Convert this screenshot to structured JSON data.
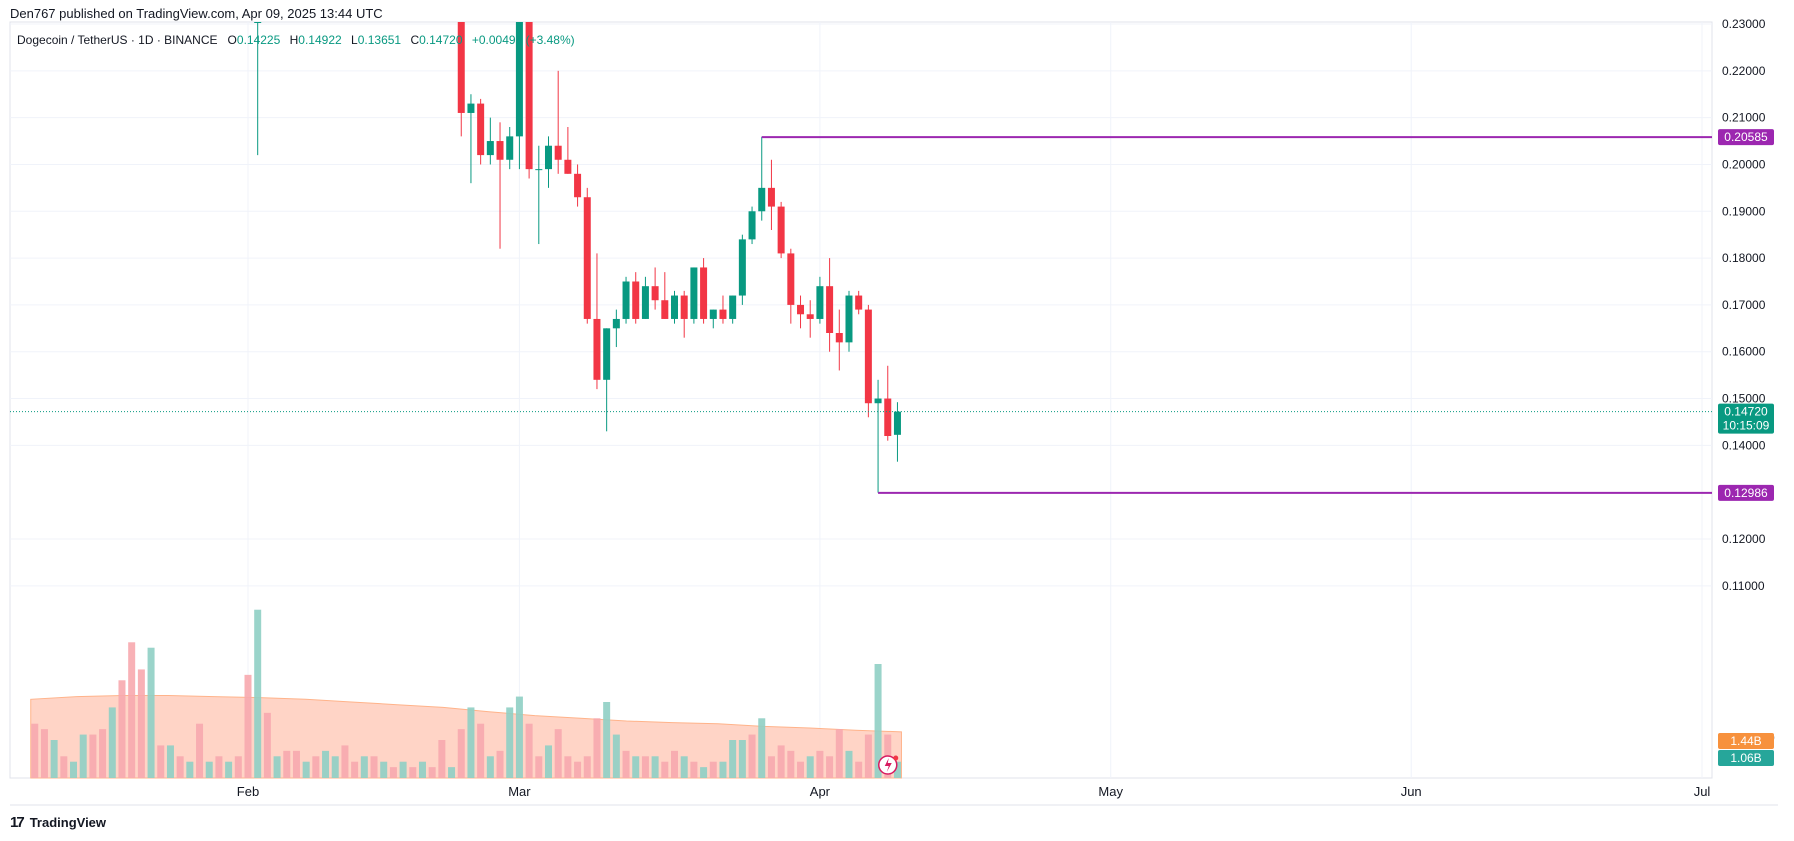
{
  "header": {
    "published_line": "Den767 published on TradingView.com, Apr 09, 2025 13:44 UTC"
  },
  "legend": {
    "symbol_line": "Dogecoin / TetherUS · 1D · BINANCE",
    "o_label": "O",
    "o_value": "0.14225",
    "h_label": "H",
    "h_value": "0.14922",
    "l_label": "L",
    "l_value": "0.13651",
    "c_label": "C",
    "c_value": "0.14720",
    "change": "+0.00495 (+3.48%)"
  },
  "footer": {
    "brand": "TradingView",
    "logo_icon": "tradingview-logo-icon"
  },
  "colors": {
    "up": "#089981",
    "down": "#f23645",
    "level": "#9c27b0",
    "volume_up": "#8fcfc4",
    "volume_down": "#f7a8ae",
    "volume_ma": "#ffccbc",
    "vol_badge_orange": "#f7913d",
    "vol_badge_teal": "#26a69a"
  },
  "chart_data": {
    "type": "candlestick",
    "y_axis": {
      "ticks": [
        "0.23000",
        "0.22000",
        "0.21000",
        "0.20000",
        "0.19000",
        "0.18000",
        "0.17000",
        "0.16000",
        "0.15000",
        "0.14000",
        "0.12000",
        "0.11000"
      ],
      "tick_values": [
        0.23,
        0.22,
        0.21,
        0.2,
        0.19,
        0.18,
        0.17,
        0.16,
        0.15,
        0.14,
        0.12,
        0.11
      ],
      "range": [
        0.0935,
        0.2355
      ]
    },
    "x_axis": {
      "labels": [
        "Feb",
        "Mar",
        "Apr",
        "May",
        "Jun",
        "Jul"
      ],
      "label_dates": [
        "2025-02-01",
        "2025-03-01",
        "2025-04-01",
        "2025-05-01",
        "2025-06-01",
        "2025-07-01"
      ],
      "range": [
        "2025-01-10",
        "2025-07-19"
      ]
    },
    "price_labels": {
      "resistance": "0.20585",
      "last_price": "0.14720",
      "countdown": "10:15:09",
      "support": "0.12986",
      "volume_a": "1.44B",
      "volume_b": "1.06B",
      "clipped_tick": "0"
    },
    "horizontal_levels": [
      {
        "value": 0.20585,
        "start_date": "2025-03-26",
        "label": "0.20585"
      },
      {
        "value": 0.12986,
        "start_date": "2025-04-07",
        "label": "0.12986"
      }
    ],
    "last_price": 0.1472,
    "candles": [
      {
        "date": "2025-02-02",
        "o": 0.236,
        "h": 0.236,
        "l": 0.202,
        "c": 0.236
      },
      {
        "date": "2025-02-23",
        "o": 0.236,
        "h": 0.236,
        "l": 0.206,
        "c": 0.211
      },
      {
        "date": "2025-02-24",
        "o": 0.211,
        "h": 0.215,
        "l": 0.196,
        "c": 0.213
      },
      {
        "date": "2025-02-25",
        "o": 0.213,
        "h": 0.214,
        "l": 0.2,
        "c": 0.202
      },
      {
        "date": "2025-02-26",
        "o": 0.202,
        "h": 0.21,
        "l": 0.2,
        "c": 0.205
      },
      {
        "date": "2025-02-27",
        "o": 0.205,
        "h": 0.209,
        "l": 0.182,
        "c": 0.201
      },
      {
        "date": "2025-02-28",
        "o": 0.201,
        "h": 0.208,
        "l": 0.199,
        "c": 0.206
      },
      {
        "date": "2025-03-01",
        "o": 0.206,
        "h": 0.236,
        "l": 0.199,
        "c": 0.236
      },
      {
        "date": "2025-03-02",
        "o": 0.236,
        "h": 0.236,
        "l": 0.197,
        "c": 0.199
      },
      {
        "date": "2025-03-03",
        "o": 0.199,
        "h": 0.204,
        "l": 0.183,
        "c": 0.199
      },
      {
        "date": "2025-03-04",
        "o": 0.199,
        "h": 0.206,
        "l": 0.195,
        "c": 0.204
      },
      {
        "date": "2025-03-05",
        "o": 0.204,
        "h": 0.22,
        "l": 0.198,
        "c": 0.201
      },
      {
        "date": "2025-03-06",
        "o": 0.201,
        "h": 0.208,
        "l": 0.198,
        "c": 0.198
      },
      {
        "date": "2025-03-07",
        "o": 0.198,
        "h": 0.2,
        "l": 0.191,
        "c": 0.193
      },
      {
        "date": "2025-03-08",
        "o": 0.193,
        "h": 0.195,
        "l": 0.166,
        "c": 0.167
      },
      {
        "date": "2025-03-09",
        "o": 0.167,
        "h": 0.181,
        "l": 0.152,
        "c": 0.154
      },
      {
        "date": "2025-03-10",
        "o": 0.154,
        "h": 0.165,
        "l": 0.143,
        "c": 0.165
      },
      {
        "date": "2025-03-11",
        "o": 0.165,
        "h": 0.169,
        "l": 0.161,
        "c": 0.167
      },
      {
        "date": "2025-03-12",
        "o": 0.167,
        "h": 0.176,
        "l": 0.166,
        "c": 0.175
      },
      {
        "date": "2025-03-13",
        "o": 0.175,
        "h": 0.177,
        "l": 0.166,
        "c": 0.167
      },
      {
        "date": "2025-03-14",
        "o": 0.167,
        "h": 0.176,
        "l": 0.167,
        "c": 0.174
      },
      {
        "date": "2025-03-15",
        "o": 0.174,
        "h": 0.178,
        "l": 0.169,
        "c": 0.171
      },
      {
        "date": "2025-03-16",
        "o": 0.171,
        "h": 0.177,
        "l": 0.167,
        "c": 0.167
      },
      {
        "date": "2025-03-17",
        "o": 0.167,
        "h": 0.173,
        "l": 0.166,
        "c": 0.172
      },
      {
        "date": "2025-03-18",
        "o": 0.172,
        "h": 0.173,
        "l": 0.163,
        "c": 0.167
      },
      {
        "date": "2025-03-19",
        "o": 0.167,
        "h": 0.178,
        "l": 0.166,
        "c": 0.178
      },
      {
        "date": "2025-03-20",
        "o": 0.178,
        "h": 0.18,
        "l": 0.166,
        "c": 0.167
      },
      {
        "date": "2025-03-21",
        "o": 0.167,
        "h": 0.169,
        "l": 0.165,
        "c": 0.169
      },
      {
        "date": "2025-03-22",
        "o": 0.169,
        "h": 0.172,
        "l": 0.166,
        "c": 0.167
      },
      {
        "date": "2025-03-23",
        "o": 0.167,
        "h": 0.172,
        "l": 0.166,
        "c": 0.172
      },
      {
        "date": "2025-03-24",
        "o": 0.172,
        "h": 0.185,
        "l": 0.17,
        "c": 0.184
      },
      {
        "date": "2025-03-25",
        "o": 0.184,
        "h": 0.191,
        "l": 0.183,
        "c": 0.19
      },
      {
        "date": "2025-03-26",
        "o": 0.19,
        "h": 0.2059,
        "l": 0.188,
        "c": 0.195
      },
      {
        "date": "2025-03-27",
        "o": 0.195,
        "h": 0.201,
        "l": 0.186,
        "c": 0.191
      },
      {
        "date": "2025-03-28",
        "o": 0.191,
        "h": 0.192,
        "l": 0.18,
        "c": 0.181
      },
      {
        "date": "2025-03-29",
        "o": 0.181,
        "h": 0.182,
        "l": 0.166,
        "c": 0.17
      },
      {
        "date": "2025-03-30",
        "o": 0.17,
        "h": 0.172,
        "l": 0.165,
        "c": 0.168
      },
      {
        "date": "2025-03-31",
        "o": 0.168,
        "h": 0.171,
        "l": 0.163,
        "c": 0.167
      },
      {
        "date": "2025-04-01",
        "o": 0.167,
        "h": 0.176,
        "l": 0.166,
        "c": 0.174
      },
      {
        "date": "2025-04-02",
        "o": 0.174,
        "h": 0.18,
        "l": 0.16,
        "c": 0.164
      },
      {
        "date": "2025-04-03",
        "o": 0.164,
        "h": 0.169,
        "l": 0.156,
        "c": 0.162
      },
      {
        "date": "2025-04-04",
        "o": 0.162,
        "h": 0.173,
        "l": 0.16,
        "c": 0.172
      },
      {
        "date": "2025-04-05",
        "o": 0.172,
        "h": 0.173,
        "l": 0.168,
        "c": 0.169
      },
      {
        "date": "2025-04-06",
        "o": 0.169,
        "h": 0.17,
        "l": 0.146,
        "c": 0.149
      },
      {
        "date": "2025-04-07",
        "o": 0.149,
        "h": 0.154,
        "l": 0.1299,
        "c": 0.15
      },
      {
        "date": "2025-04-08",
        "o": 0.15,
        "h": 0.157,
        "l": 0.141,
        "c": 0.142
      },
      {
        "date": "2025-04-09",
        "o": 0.14225,
        "h": 0.14922,
        "l": 0.13651,
        "c": 0.1472
      }
    ],
    "volume": {
      "scale_max": 3.5,
      "bars": [
        {
          "date": "2025-01-10",
          "v": 1.0,
          "up": false
        },
        {
          "date": "2025-01-11",
          "v": 0.9,
          "up": false
        },
        {
          "date": "2025-01-12",
          "v": 0.7,
          "up": true
        },
        {
          "date": "2025-01-13",
          "v": 0.4,
          "up": false
        },
        {
          "date": "2025-01-14",
          "v": 0.3,
          "up": true
        },
        {
          "date": "2025-01-15",
          "v": 0.8,
          "up": true
        },
        {
          "date": "2025-01-16",
          "v": 0.8,
          "up": false
        },
        {
          "date": "2025-01-17",
          "v": 0.9,
          "up": false
        },
        {
          "date": "2025-01-18",
          "v": 1.3,
          "up": true
        },
        {
          "date": "2025-01-19",
          "v": 1.8,
          "up": false
        },
        {
          "date": "2025-01-20",
          "v": 2.5,
          "up": false
        },
        {
          "date": "2025-01-21",
          "v": 2.0,
          "up": false
        },
        {
          "date": "2025-01-22",
          "v": 2.4,
          "up": true
        },
        {
          "date": "2025-01-23",
          "v": 0.6,
          "up": false
        },
        {
          "date": "2025-01-24",
          "v": 0.6,
          "up": true
        },
        {
          "date": "2025-01-25",
          "v": 0.4,
          "up": false
        },
        {
          "date": "2025-01-26",
          "v": 0.3,
          "up": true
        },
        {
          "date": "2025-01-27",
          "v": 1.0,
          "up": false
        },
        {
          "date": "2025-01-28",
          "v": 0.3,
          "up": true
        },
        {
          "date": "2025-01-29",
          "v": 0.4,
          "up": false
        },
        {
          "date": "2025-01-30",
          "v": 0.3,
          "up": true
        },
        {
          "date": "2025-01-31",
          "v": 0.4,
          "up": false
        },
        {
          "date": "2025-02-01",
          "v": 1.9,
          "up": false
        },
        {
          "date": "2025-02-02",
          "v": 3.1,
          "up": true
        },
        {
          "date": "2025-02-03",
          "v": 1.2,
          "up": false
        },
        {
          "date": "2025-02-04",
          "v": 0.4,
          "up": true
        },
        {
          "date": "2025-02-05",
          "v": 0.5,
          "up": false
        },
        {
          "date": "2025-02-06",
          "v": 0.5,
          "up": false
        },
        {
          "date": "2025-02-07",
          "v": 0.3,
          "up": true
        },
        {
          "date": "2025-02-08",
          "v": 0.4,
          "up": false
        },
        {
          "date": "2025-02-09",
          "v": 0.5,
          "up": true
        },
        {
          "date": "2025-02-10",
          "v": 0.4,
          "up": true
        },
        {
          "date": "2025-02-11",
          "v": 0.6,
          "up": false
        },
        {
          "date": "2025-02-12",
          "v": 0.3,
          "up": false
        },
        {
          "date": "2025-02-13",
          "v": 0.4,
          "up": true
        },
        {
          "date": "2025-02-14",
          "v": 0.4,
          "up": false
        },
        {
          "date": "2025-02-15",
          "v": 0.3,
          "up": true
        },
        {
          "date": "2025-02-16",
          "v": 0.2,
          "up": false
        },
        {
          "date": "2025-02-17",
          "v": 0.3,
          "up": true
        },
        {
          "date": "2025-02-18",
          "v": 0.2,
          "up": false
        },
        {
          "date": "2025-02-19",
          "v": 0.3,
          "up": true
        },
        {
          "date": "2025-02-20",
          "v": 0.2,
          "up": false
        },
        {
          "date": "2025-02-21",
          "v": 0.7,
          "up": false
        },
        {
          "date": "2025-02-22",
          "v": 0.2,
          "up": true
        },
        {
          "date": "2025-02-23",
          "v": 0.9,
          "up": false
        },
        {
          "date": "2025-02-24",
          "v": 1.3,
          "up": true
        },
        {
          "date": "2025-02-25",
          "v": 1.0,
          "up": false
        },
        {
          "date": "2025-02-26",
          "v": 0.4,
          "up": true
        },
        {
          "date": "2025-02-27",
          "v": 0.5,
          "up": false
        },
        {
          "date": "2025-02-28",
          "v": 1.3,
          "up": true
        },
        {
          "date": "2025-03-01",
          "v": 1.5,
          "up": true
        },
        {
          "date": "2025-03-02",
          "v": 1.0,
          "up": false
        },
        {
          "date": "2025-03-03",
          "v": 0.4,
          "up": false
        },
        {
          "date": "2025-03-04",
          "v": 0.6,
          "up": true
        },
        {
          "date": "2025-03-05",
          "v": 0.9,
          "up": false
        },
        {
          "date": "2025-03-06",
          "v": 0.4,
          "up": false
        },
        {
          "date": "2025-03-07",
          "v": 0.3,
          "up": false
        },
        {
          "date": "2025-03-08",
          "v": 0.4,
          "up": false
        },
        {
          "date": "2025-03-09",
          "v": 1.1,
          "up": false
        },
        {
          "date": "2025-03-10",
          "v": 1.4,
          "up": true
        },
        {
          "date": "2025-03-11",
          "v": 0.8,
          "up": true
        },
        {
          "date": "2025-03-12",
          "v": 0.5,
          "up": false
        },
        {
          "date": "2025-03-13",
          "v": 0.4,
          "up": true
        },
        {
          "date": "2025-03-14",
          "v": 0.4,
          "up": false
        },
        {
          "date": "2025-03-15",
          "v": 0.4,
          "up": true
        },
        {
          "date": "2025-03-16",
          "v": 0.3,
          "up": false
        },
        {
          "date": "2025-03-17",
          "v": 0.5,
          "up": false
        },
        {
          "date": "2025-03-18",
          "v": 0.4,
          "up": true
        },
        {
          "date": "2025-03-19",
          "v": 0.3,
          "up": false
        },
        {
          "date": "2025-03-20",
          "v": 0.2,
          "up": true
        },
        {
          "date": "2025-03-21",
          "v": 0.3,
          "up": false
        },
        {
          "date": "2025-03-22",
          "v": 0.3,
          "up": true
        },
        {
          "date": "2025-03-23",
          "v": 0.7,
          "up": true
        },
        {
          "date": "2025-03-24",
          "v": 0.7,
          "up": true
        },
        {
          "date": "2025-03-25",
          "v": 0.8,
          "up": false
        },
        {
          "date": "2025-03-26",
          "v": 1.1,
          "up": true
        },
        {
          "date": "2025-03-27",
          "v": 0.4,
          "up": false
        },
        {
          "date": "2025-03-28",
          "v": 0.6,
          "up": false
        },
        {
          "date": "2025-03-29",
          "v": 0.5,
          "up": false
        },
        {
          "date": "2025-03-30",
          "v": 0.3,
          "up": false
        },
        {
          "date": "2025-03-31",
          "v": 0.4,
          "up": true
        },
        {
          "date": "2025-04-01",
          "v": 0.5,
          "up": false
        },
        {
          "date": "2025-04-02",
          "v": 0.4,
          "up": false
        },
        {
          "date": "2025-04-03",
          "v": 0.9,
          "up": false
        },
        {
          "date": "2025-04-04",
          "v": 0.5,
          "up": true
        },
        {
          "date": "2025-04-05",
          "v": 0.3,
          "up": false
        },
        {
          "date": "2025-04-06",
          "v": 0.8,
          "up": false
        },
        {
          "date": "2025-04-07",
          "v": 2.1,
          "up": true
        },
        {
          "date": "2025-04-08",
          "v": 0.8,
          "up": false
        },
        {
          "date": "2025-04-09",
          "v": 0.3,
          "up": true
        }
      ],
      "ma": [
        1.45,
        1.5,
        1.52,
        1.52,
        1.5,
        1.48,
        1.45,
        1.4,
        1.35,
        1.3,
        1.22,
        1.15,
        1.1,
        1.05,
        1.02,
        1.0,
        0.95,
        0.92,
        0.88,
        0.85
      ]
    }
  }
}
